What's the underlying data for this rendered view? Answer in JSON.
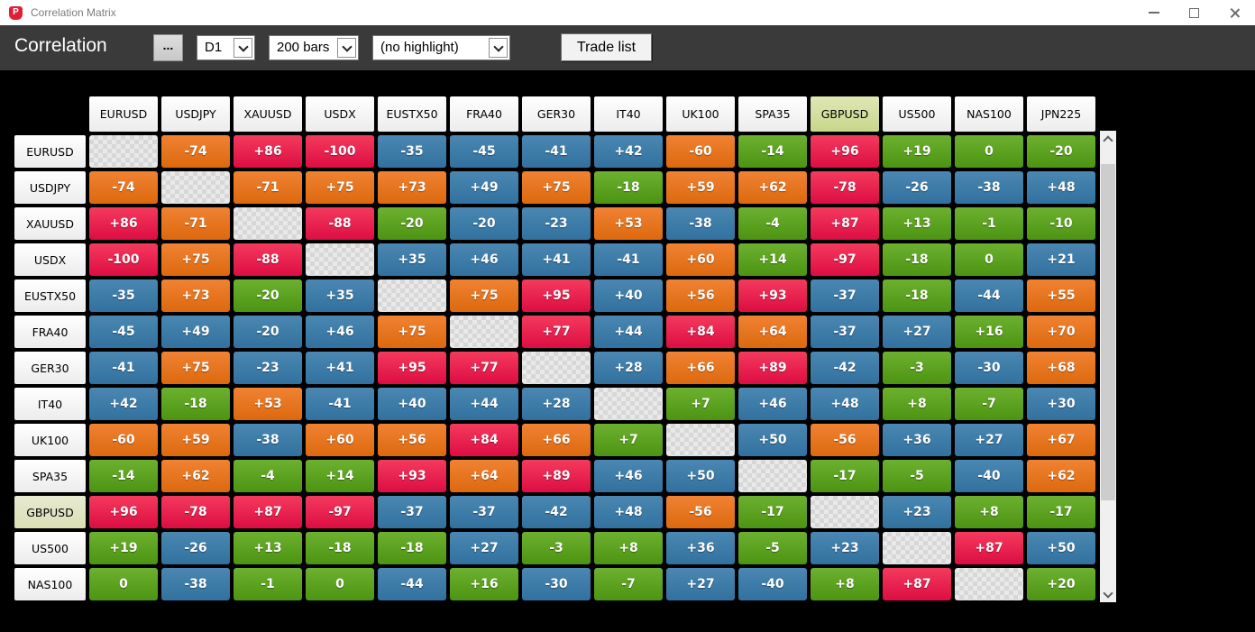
{
  "window": {
    "title": "Correlation Matrix",
    "app_icon": "red-shield-p-logo",
    "controls": {
      "minimize": "minimize",
      "maximize": "maximize",
      "close": "close"
    }
  },
  "toolbar": {
    "title": "Correlation",
    "ellipsis_button": "...",
    "timeframe_select_value": "D1",
    "bars_select_value": "200 bars",
    "highlight_select_value": "(no highlight)",
    "trade_list_button": "Trade list"
  },
  "colors": {
    "r": {
      "top": "#f43a5d",
      "bottom": "#dc0d43"
    },
    "o": {
      "top": "#f08233",
      "bottom": "#dd690e"
    },
    "b": {
      "top": "#4a87b2",
      "bottom": "#32719f"
    },
    "g": {
      "top": "#6cb02f",
      "bottom": "#4d9413"
    },
    "toolbar_bg": "#3a3a3a",
    "titlebar_bg": "#ffffff",
    "main_bg": "#000000",
    "highlight_column_top": "#e0e7b4",
    "highlight_column_bottom": "#c7d78a",
    "highlight_row": "#dfe3bd"
  },
  "matrix": {
    "highlight_symbol": "GBPUSD",
    "column_headers": [
      "EURUSD",
      "USDJPY",
      "XAUUSD",
      "USDX",
      "EUSTX50",
      "FRA40",
      "GER30",
      "IT40",
      "UK100",
      "SPA35",
      "GBPUSD",
      "US500",
      "NAS100",
      "JPN225"
    ],
    "rows": [
      {
        "header": "EURUSD",
        "cells": [
          null,
          [
            "-74",
            "o"
          ],
          [
            "+86",
            "r"
          ],
          [
            "-100",
            "r"
          ],
          [
            "-35",
            "b"
          ],
          [
            "-45",
            "b"
          ],
          [
            "-41",
            "b"
          ],
          [
            "+42",
            "b"
          ],
          [
            "-60",
            "o"
          ],
          [
            "-14",
            "g"
          ],
          [
            "+96",
            "r"
          ],
          [
            "+19",
            "g"
          ],
          [
            "0",
            "g"
          ],
          [
            "-20",
            "g"
          ]
        ]
      },
      {
        "header": "USDJPY",
        "cells": [
          [
            "-74",
            "o"
          ],
          null,
          [
            "-71",
            "o"
          ],
          [
            "+75",
            "o"
          ],
          [
            "+73",
            "o"
          ],
          [
            "+49",
            "b"
          ],
          [
            "+75",
            "o"
          ],
          [
            "-18",
            "g"
          ],
          [
            "+59",
            "o"
          ],
          [
            "+62",
            "o"
          ],
          [
            "-78",
            "r"
          ],
          [
            "-26",
            "b"
          ],
          [
            "-38",
            "b"
          ],
          [
            "+48",
            "b"
          ]
        ]
      },
      {
        "header": "XAUUSD",
        "cells": [
          [
            "+86",
            "r"
          ],
          [
            "-71",
            "o"
          ],
          null,
          [
            "-88",
            "r"
          ],
          [
            "-20",
            "g"
          ],
          [
            "-20",
            "b"
          ],
          [
            "-23",
            "b"
          ],
          [
            "+53",
            "o"
          ],
          [
            "-38",
            "b"
          ],
          [
            "-4",
            "g"
          ],
          [
            "+87",
            "r"
          ],
          [
            "+13",
            "g"
          ],
          [
            "-1",
            "g"
          ],
          [
            "-10",
            "g"
          ]
        ]
      },
      {
        "header": "USDX",
        "cells": [
          [
            "-100",
            "r"
          ],
          [
            "+75",
            "o"
          ],
          [
            "-88",
            "r"
          ],
          null,
          [
            "+35",
            "b"
          ],
          [
            "+46",
            "b"
          ],
          [
            "+41",
            "b"
          ],
          [
            "-41",
            "b"
          ],
          [
            "+60",
            "o"
          ],
          [
            "+14",
            "g"
          ],
          [
            "-97",
            "r"
          ],
          [
            "-18",
            "g"
          ],
          [
            "0",
            "g"
          ],
          [
            "+21",
            "b"
          ]
        ]
      },
      {
        "header": "EUSTX50",
        "cells": [
          [
            "-35",
            "b"
          ],
          [
            "+73",
            "o"
          ],
          [
            "-20",
            "g"
          ],
          [
            "+35",
            "b"
          ],
          null,
          [
            "+75",
            "o"
          ],
          [
            "+95",
            "r"
          ],
          [
            "+40",
            "b"
          ],
          [
            "+56",
            "o"
          ],
          [
            "+93",
            "r"
          ],
          [
            "-37",
            "b"
          ],
          [
            "-18",
            "g"
          ],
          [
            "-44",
            "b"
          ],
          [
            "+55",
            "o"
          ]
        ]
      },
      {
        "header": "FRA40",
        "cells": [
          [
            "-45",
            "b"
          ],
          [
            "+49",
            "b"
          ],
          [
            "-20",
            "b"
          ],
          [
            "+46",
            "b"
          ],
          [
            "+75",
            "o"
          ],
          null,
          [
            "+77",
            "r"
          ],
          [
            "+44",
            "b"
          ],
          [
            "+84",
            "r"
          ],
          [
            "+64",
            "o"
          ],
          [
            "-37",
            "b"
          ],
          [
            "+27",
            "b"
          ],
          [
            "+16",
            "g"
          ],
          [
            "+70",
            "o"
          ]
        ]
      },
      {
        "header": "GER30",
        "cells": [
          [
            "-41",
            "b"
          ],
          [
            "+75",
            "o"
          ],
          [
            "-23",
            "b"
          ],
          [
            "+41",
            "b"
          ],
          [
            "+95",
            "r"
          ],
          [
            "+77",
            "r"
          ],
          null,
          [
            "+28",
            "b"
          ],
          [
            "+66",
            "o"
          ],
          [
            "+89",
            "r"
          ],
          [
            "-42",
            "b"
          ],
          [
            "-3",
            "g"
          ],
          [
            "-30",
            "b"
          ],
          [
            "+68",
            "o"
          ]
        ]
      },
      {
        "header": "IT40",
        "cells": [
          [
            "+42",
            "b"
          ],
          [
            "-18",
            "g"
          ],
          [
            "+53",
            "o"
          ],
          [
            "-41",
            "b"
          ],
          [
            "+40",
            "b"
          ],
          [
            "+44",
            "b"
          ],
          [
            "+28",
            "b"
          ],
          null,
          [
            "+7",
            "g"
          ],
          [
            "+46",
            "b"
          ],
          [
            "+48",
            "b"
          ],
          [
            "+8",
            "g"
          ],
          [
            "-7",
            "g"
          ],
          [
            "+30",
            "b"
          ]
        ]
      },
      {
        "header": "UK100",
        "cells": [
          [
            "-60",
            "o"
          ],
          [
            "+59",
            "o"
          ],
          [
            "-38",
            "b"
          ],
          [
            "+60",
            "o"
          ],
          [
            "+56",
            "o"
          ],
          [
            "+84",
            "r"
          ],
          [
            "+66",
            "o"
          ],
          [
            "+7",
            "g"
          ],
          null,
          [
            "+50",
            "b"
          ],
          [
            "-56",
            "o"
          ],
          [
            "+36",
            "b"
          ],
          [
            "+27",
            "b"
          ],
          [
            "+67",
            "o"
          ]
        ]
      },
      {
        "header": "SPA35",
        "cells": [
          [
            "-14",
            "g"
          ],
          [
            "+62",
            "o"
          ],
          [
            "-4",
            "g"
          ],
          [
            "+14",
            "g"
          ],
          [
            "+93",
            "r"
          ],
          [
            "+64",
            "o"
          ],
          [
            "+89",
            "r"
          ],
          [
            "+46",
            "b"
          ],
          [
            "+50",
            "b"
          ],
          null,
          [
            "-17",
            "g"
          ],
          [
            "-5",
            "g"
          ],
          [
            "-40",
            "b"
          ],
          [
            "+62",
            "o"
          ]
        ]
      },
      {
        "header": "GBPUSD",
        "cells": [
          [
            "+96",
            "r"
          ],
          [
            "-78",
            "r"
          ],
          [
            "+87",
            "r"
          ],
          [
            "-97",
            "r"
          ],
          [
            "-37",
            "b"
          ],
          [
            "-37",
            "b"
          ],
          [
            "-42",
            "b"
          ],
          [
            "+48",
            "b"
          ],
          [
            "-56",
            "o"
          ],
          [
            "-17",
            "g"
          ],
          null,
          [
            "+23",
            "b"
          ],
          [
            "+8",
            "g"
          ],
          [
            "-17",
            "g"
          ]
        ]
      },
      {
        "header": "US500",
        "cells": [
          [
            "+19",
            "g"
          ],
          [
            "-26",
            "b"
          ],
          [
            "+13",
            "g"
          ],
          [
            "-18",
            "g"
          ],
          [
            "-18",
            "g"
          ],
          [
            "+27",
            "b"
          ],
          [
            "-3",
            "g"
          ],
          [
            "+8",
            "g"
          ],
          [
            "+36",
            "b"
          ],
          [
            "-5",
            "g"
          ],
          [
            "+23",
            "b"
          ],
          null,
          [
            "+87",
            "r"
          ],
          [
            "+50",
            "b"
          ]
        ]
      },
      {
        "header": "NAS100",
        "cells": [
          [
            "0",
            "g"
          ],
          [
            "-38",
            "b"
          ],
          [
            "-1",
            "g"
          ],
          [
            "0",
            "g"
          ],
          [
            "-44",
            "b"
          ],
          [
            "+16",
            "g"
          ],
          [
            "-30",
            "b"
          ],
          [
            "-7",
            "g"
          ],
          [
            "+27",
            "b"
          ],
          [
            "-40",
            "b"
          ],
          [
            "+8",
            "g"
          ],
          [
            "+87",
            "r"
          ],
          null,
          [
            "+20",
            "g"
          ]
        ]
      }
    ]
  },
  "scrollbar": {
    "orientation": "vertical"
  }
}
